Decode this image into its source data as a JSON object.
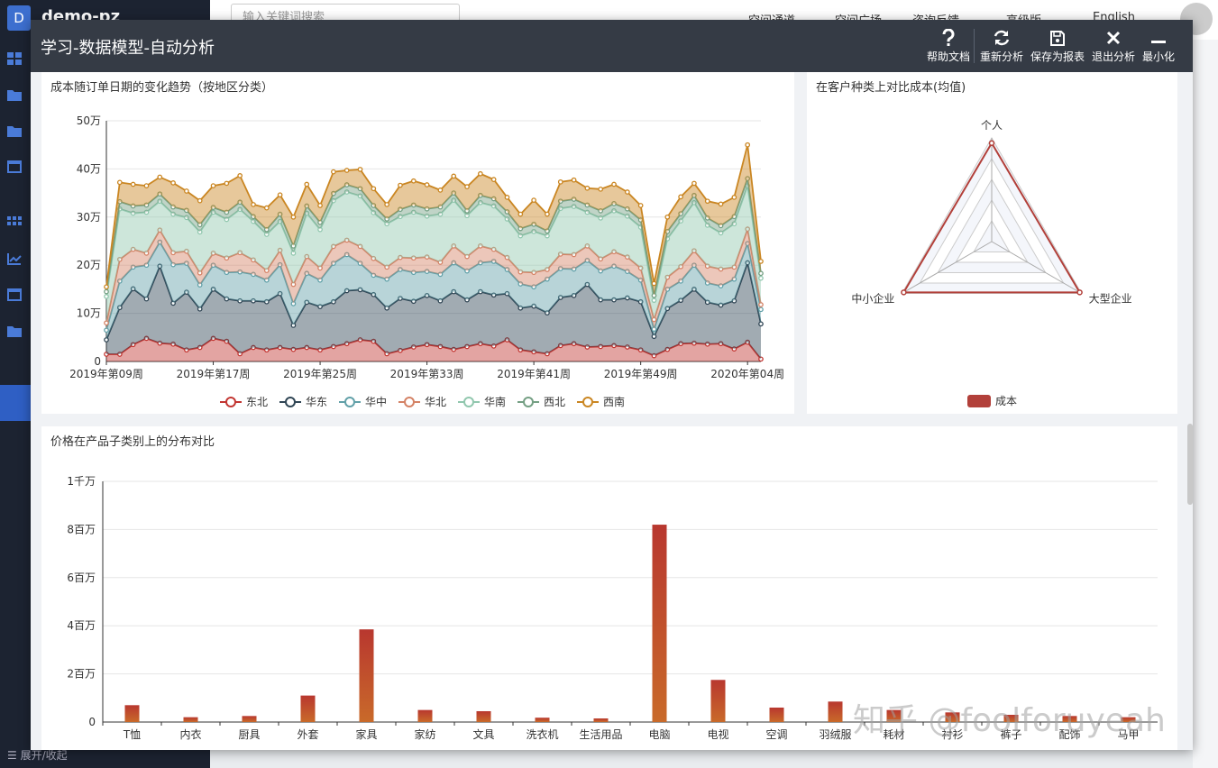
{
  "app": {
    "logo_letter": "D",
    "name": "demo-pz",
    "collapse_label": "展开/收起"
  },
  "topbar": {
    "search_placeholder": "输入关键词搜索",
    "nav": [
      "空间通道",
      "空间广场",
      "咨询反馈",
      "高级版",
      "English"
    ]
  },
  "modal": {
    "title": "学习-数据模型-自动分析",
    "toolbar": [
      {
        "label": "帮助文档",
        "icon": "question-icon"
      },
      {
        "label": "重新分析",
        "icon": "refresh-icon"
      },
      {
        "label": "保存为报表",
        "icon": "save-icon"
      },
      {
        "label": "退出分析",
        "icon": "close-icon"
      },
      {
        "label": "最小化",
        "icon": "minimize-icon"
      }
    ]
  },
  "watermark": "知乎 @foolforuyeah",
  "colors": {
    "东北": "#c23531",
    "华东": "#2f4554",
    "华中": "#61a0a8",
    "华北": "#d48265",
    "华南": "#91c7ae",
    "西北": "#749f83",
    "西南": "#ca8622"
  },
  "chart_data": [
    {
      "type": "area",
      "stacked": true,
      "title": "成本随订单日期的变化趋势（按地区分类）",
      "x_ticks": [
        "2019年第09周",
        "2019年第17周",
        "2019年第25周",
        "2019年第33周",
        "2019年第41周",
        "2019年第49周",
        "2020年第04周"
      ],
      "y_ticks": [
        "0",
        "10万",
        "20万",
        "30万",
        "40万",
        "50万"
      ],
      "ylim": [
        0,
        500000
      ],
      "grid": true,
      "legend_position": "bottom",
      "series": [
        {
          "name": "东北",
          "values": [
            15000,
            15000,
            35000,
            48000,
            38000,
            36000,
            24000,
            29000,
            48000,
            42000,
            16000,
            29000,
            24000,
            29000,
            25000,
            29000,
            24000,
            31000,
            37000,
            45000,
            42000,
            16000,
            23000,
            30000,
            35000,
            31000,
            25000,
            31000,
            37000,
            32000,
            45000,
            24000,
            20000,
            16000,
            33000,
            37000,
            30000,
            31000,
            33000,
            30000,
            24000,
            12000,
            25000,
            37000,
            38000,
            36000,
            37000,
            26000,
            40000,
            5000
          ]
        },
        {
          "name": "华东",
          "values": [
            30000,
            97000,
            116000,
            82000,
            160000,
            85000,
            120000,
            80000,
            102000,
            88000,
            110000,
            97000,
            100000,
            112000,
            50000,
            94000,
            90000,
            93000,
            110000,
            104000,
            97000,
            95000,
            108000,
            95000,
            102000,
            95000,
            120000,
            97000,
            108000,
            106000,
            96000,
            87000,
            95000,
            85000,
            100000,
            100000,
            130000,
            97000,
            95000,
            102000,
            100000,
            40000,
            85000,
            90000,
            112000,
            87000,
            80000,
            100000,
            165000,
            73000
          ]
        },
        {
          "name": "华中",
          "values": [
            20000,
            55000,
            45000,
            70000,
            50000,
            80000,
            60000,
            50000,
            50000,
            55000,
            60000,
            55000,
            45000,
            60000,
            45000,
            60000,
            55000,
            80000,
            75000,
            55000,
            40000,
            60000,
            60000,
            60000,
            50000,
            55000,
            60000,
            60000,
            60000,
            70000,
            50000,
            50000,
            40000,
            70000,
            60000,
            55000,
            50000,
            60000,
            70000,
            55000,
            45000,
            15000,
            40000,
            40000,
            50000,
            40000,
            40000,
            45000,
            40000,
            30000
          ]
        },
        {
          "name": "华北",
          "values": [
            15000,
            45000,
            37000,
            25000,
            25000,
            25000,
            25000,
            25000,
            25000,
            30000,
            40000,
            30000,
            20000,
            30000,
            40000,
            35000,
            25000,
            35000,
            30000,
            35000,
            35000,
            25000,
            25000,
            30000,
            30000,
            25000,
            35000,
            30000,
            35000,
            25000,
            25000,
            25000,
            30000,
            20000,
            30000,
            30000,
            30000,
            25000,
            30000,
            30000,
            25000,
            20000,
            25000,
            30000,
            30000,
            35000,
            35000,
            25000,
            30000,
            10000
          ]
        },
        {
          "name": "华南",
          "values": [
            55000,
            105000,
            75000,
            85000,
            60000,
            80000,
            70000,
            85000,
            85000,
            80000,
            90000,
            80000,
            75000,
            60000,
            65000,
            90000,
            80000,
            95000,
            100000,
            105000,
            95000,
            90000,
            85000,
            95000,
            85000,
            100000,
            95000,
            85000,
            90000,
            90000,
            80000,
            75000,
            85000,
            70000,
            95000,
            100000,
            70000,
            85000,
            85000,
            85000,
            85000,
            40000,
            80000,
            95000,
            100000,
            85000,
            75000,
            90000,
            90000,
            55000
          ]
        },
        {
          "name": "西北",
          "values": [
            10000,
            15000,
            15000,
            15000,
            15000,
            15000,
            15000,
            15000,
            10000,
            15000,
            15000,
            10000,
            10000,
            15000,
            15000,
            15000,
            15000,
            15000,
            15000,
            15000,
            15000,
            10000,
            15000,
            15000,
            15000,
            15000,
            15000,
            10000,
            15000,
            15000,
            15000,
            15000,
            15000,
            10000,
            15000,
            15000,
            15000,
            15000,
            15000,
            15000,
            15000,
            10000,
            15000,
            15000,
            15000,
            15000,
            15000,
            15000,
            15000,
            10000
          ]
        },
        {
          "name": "西南",
          "values": [
            10000,
            40000,
            45000,
            40000,
            35000,
            50000,
            40000,
            50000,
            45000,
            60000,
            55000,
            25000,
            45000,
            40000,
            60000,
            45000,
            35000,
            45000,
            30000,
            40000,
            35000,
            30000,
            50000,
            50000,
            50000,
            35000,
            35000,
            50000,
            45000,
            40000,
            30000,
            30000,
            50000,
            35000,
            40000,
            40000,
            35000,
            45000,
            40000,
            35000,
            30000,
            25000,
            30000,
            35000,
            25000,
            35000,
            45000,
            40000,
            70000,
            25000
          ]
        }
      ]
    },
    {
      "type": "radar",
      "title": "在客户种类上对比成本(均值)",
      "indicators": [
        "个人",
        "大型企业",
        "中小企业"
      ],
      "series": [
        {
          "name": "成本",
          "values": [
            0.95,
            0.98,
            0.98
          ]
        }
      ],
      "legend_position": "bottom"
    },
    {
      "type": "bar",
      "title": "价格在产品子类别上的分布对比",
      "categories": [
        "T恤",
        "内衣",
        "厨具",
        "外套",
        "家具",
        "家纺",
        "文具",
        "洗衣机",
        "生活用品",
        "电脑",
        "电视",
        "空调",
        "羽绒服",
        "耗材",
        "衬衫",
        "裤子",
        "配饰",
        "马甲"
      ],
      "values": [
        700000,
        200000,
        250000,
        1100000,
        3850000,
        500000,
        450000,
        180000,
        150000,
        8200000,
        1750000,
        600000,
        850000,
        500000,
        400000,
        300000,
        250000,
        200000
      ],
      "y_ticks": [
        "0",
        "2百万",
        "4百万",
        "6百万",
        "8百万",
        "1千万"
      ],
      "ylim": [
        0,
        10000000
      ],
      "grid": true
    }
  ]
}
